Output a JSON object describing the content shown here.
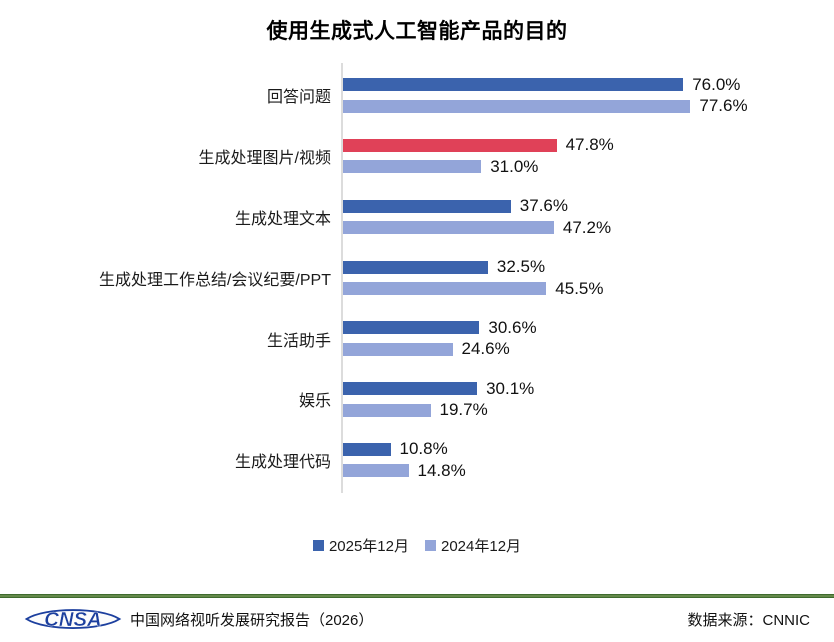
{
  "title": "使用生成式人工智能产品的目的",
  "chart_data": {
    "type": "bar",
    "orientation": "horizontal",
    "title": "使用生成式人工智能产品的目的",
    "categories": [
      "回答问题",
      "生成处理图片/视频",
      "生成处理文本",
      "生成处理工作总结/会议纪要/PPT",
      "生活助手",
      "娱乐",
      "生成处理代码"
    ],
    "series": [
      {
        "name": "2025年12月",
        "color": "#3b63ad",
        "values": [
          76.0,
          47.8,
          37.6,
          32.5,
          30.6,
          30.1,
          10.8
        ]
      },
      {
        "name": "2024年12月",
        "color": "#93a5d9",
        "values": [
          77.6,
          31.0,
          47.2,
          45.5,
          24.6,
          19.7,
          14.8
        ]
      }
    ],
    "highlight": {
      "series_index": 0,
      "category_index": 1,
      "color": "#e04158"
    },
    "value_suffix": "%",
    "value_decimals": 1,
    "xlim": [
      0,
      80
    ],
    "grid": false,
    "legend_position": "bottom"
  },
  "legend": {
    "items": [
      {
        "label": "2025年12月",
        "color": "#3b63ad"
      },
      {
        "label": "2024年12月",
        "color": "#93a5d9"
      }
    ]
  },
  "footer": {
    "logo_text": "CNSA",
    "report_title": "中国网络视听发展研究报告（2026）",
    "data_source": "数据来源：CNNIC"
  },
  "colors": {
    "series_2025": "#3b63ad",
    "series_2024": "#93a5d9",
    "highlight_red": "#e04158",
    "axis_gray": "#dcdcdc",
    "divider_green": "#3f6b2e",
    "logo_blue": "#1c3f9e"
  }
}
